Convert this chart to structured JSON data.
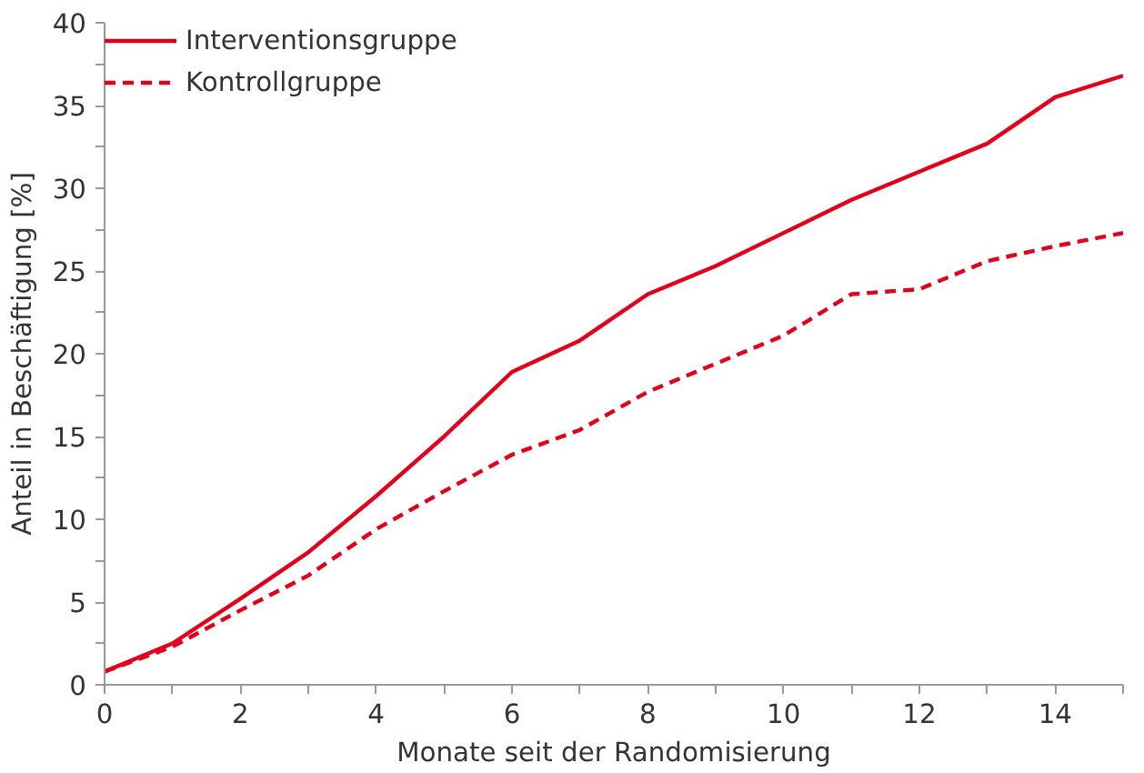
{
  "chart_data": {
    "type": "line",
    "xlabel": "Monate seit der Randomisierung",
    "ylabel": "Anteil in Beschäftigung [%]",
    "x": [
      0,
      1,
      2,
      3,
      4,
      5,
      6,
      7,
      8,
      9,
      10,
      11,
      12,
      13,
      14,
      15
    ],
    "series": [
      {
        "name": "Interventionsgruppe",
        "color": "#e2001a",
        "line_style": "solid",
        "values": [
          0.8,
          2.5,
          5.2,
          8.0,
          11.4,
          15.0,
          18.9,
          20.8,
          23.6,
          25.3,
          27.3,
          29.3,
          31.0,
          32.7,
          35.5,
          36.8
        ]
      },
      {
        "name": "Kontrollgruppe",
        "color": "#e2001a",
        "line_style": "dashed",
        "values": [
          0.8,
          2.3,
          4.5,
          6.6,
          9.4,
          11.7,
          13.9,
          15.4,
          17.7,
          19.4,
          21.1,
          23.6,
          23.9,
          25.6,
          26.5,
          27.3
        ]
      }
    ],
    "xlim": [
      0,
      15
    ],
    "ylim": [
      0,
      40
    ],
    "xticks": [
      0,
      {
        "value": 1,
        "label": null
      },
      2,
      {
        "value": 3,
        "label": null
      },
      4,
      {
        "value": 5,
        "label": null
      },
      6,
      {
        "value": 7,
        "label": null
      },
      8,
      {
        "value": 9,
        "label": null
      },
      10,
      {
        "value": 11,
        "label": null
      },
      12,
      {
        "value": 13,
        "label": null
      },
      14,
      {
        "value": 15,
        "label": null
      }
    ],
    "yticks": [
      0,
      {
        "value": 2.5,
        "label": null
      },
      5,
      {
        "value": 7.5,
        "label": null
      },
      10,
      {
        "value": 12.5,
        "label": null
      },
      15,
      {
        "value": 17.5,
        "label": null
      },
      20,
      {
        "value": 22.5,
        "label": null
      },
      25,
      {
        "value": 27.5,
        "label": null
      },
      30,
      {
        "value": 32.5,
        "label": null
      },
      35,
      {
        "value": 37.5,
        "label": null
      },
      40
    ],
    "grid": false,
    "legend": "top left",
    "marker": "none"
  }
}
